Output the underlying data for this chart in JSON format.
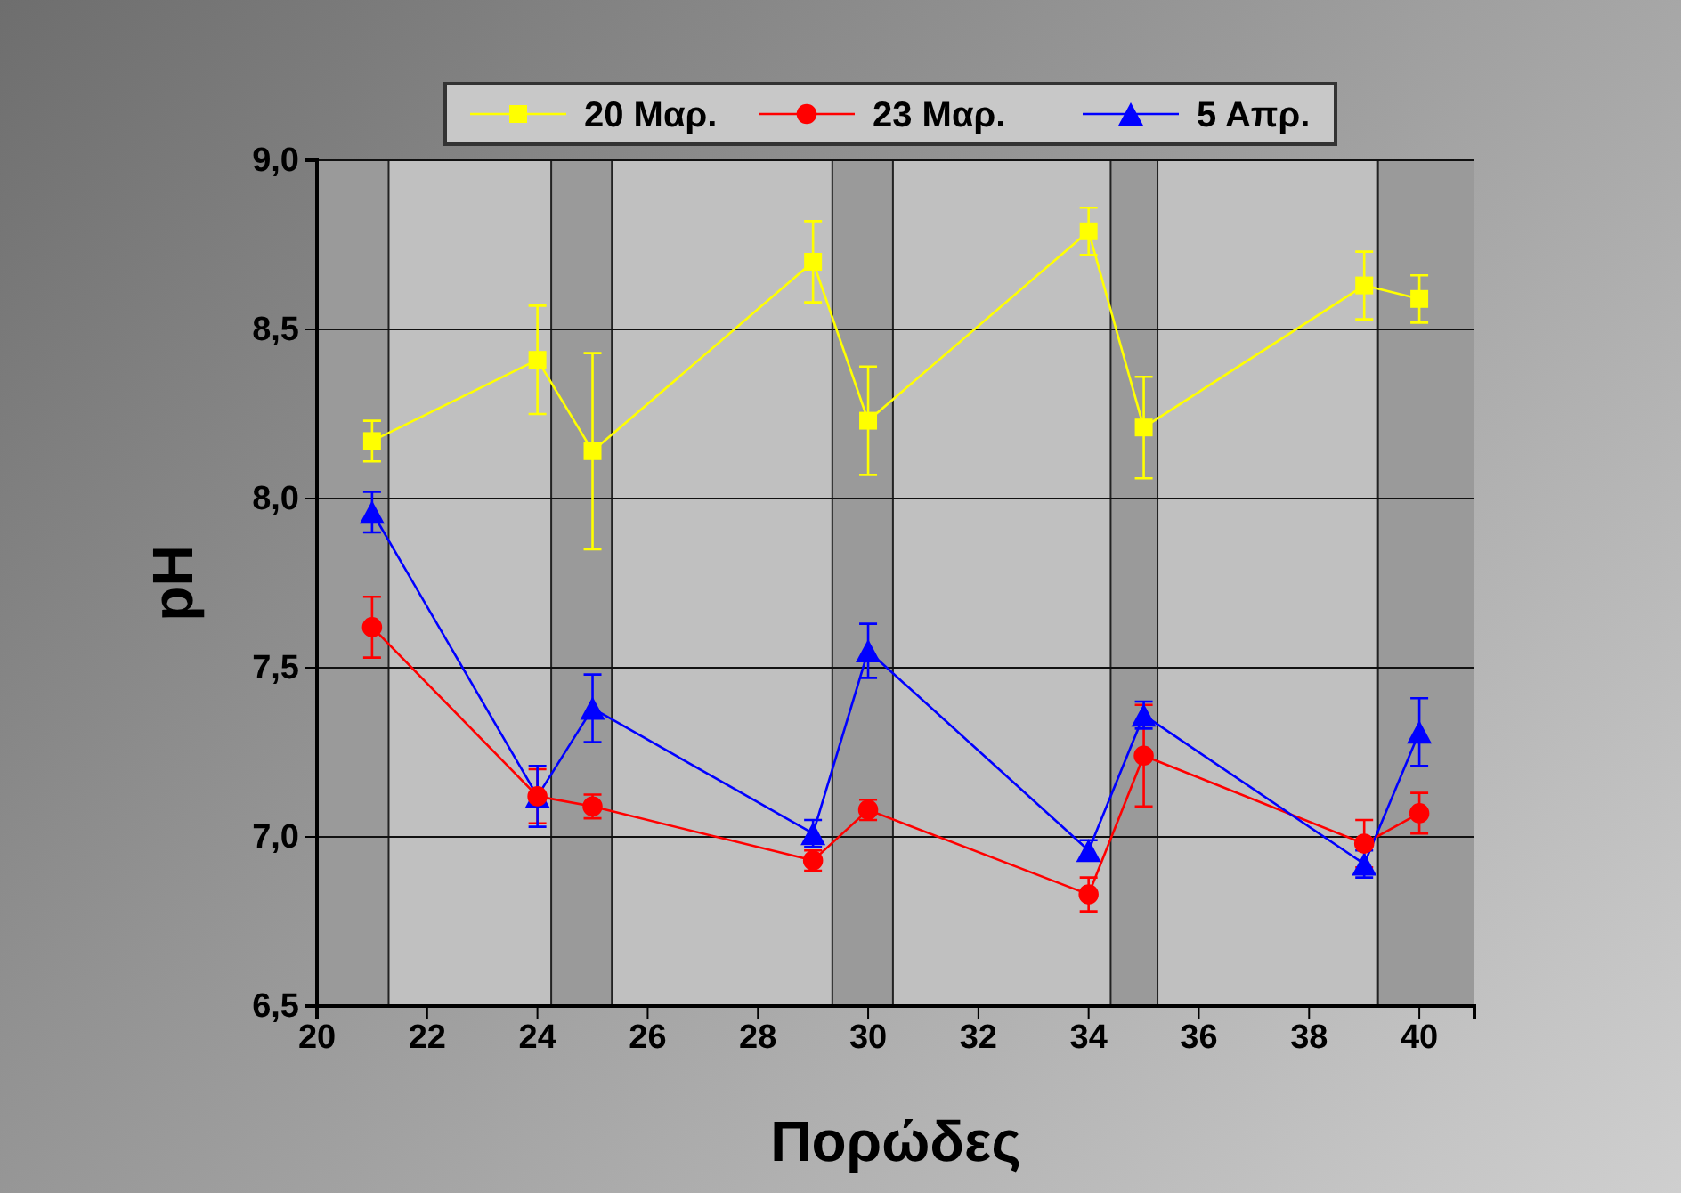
{
  "chart_data": {
    "type": "line",
    "xlabel": "Πορώδες",
    "ylabel": "pH",
    "xlim": [
      20,
      41
    ],
    "xticks": [
      20,
      22,
      24,
      26,
      28,
      30,
      32,
      34,
      36,
      38,
      40
    ],
    "ylim": [
      6.5,
      9.0
    ],
    "yticks": [
      {
        "value": 6.5,
        "label": "6,5"
      },
      {
        "value": 7.0,
        "label": "7,0"
      },
      {
        "value": 7.5,
        "label": "7,5"
      },
      {
        "value": 8.0,
        "label": "8,0"
      },
      {
        "value": 8.5,
        "label": "8,5"
      },
      {
        "value": 9.0,
        "label": "9,0"
      }
    ],
    "grid": "y",
    "legend": "top",
    "x": [
      21,
      24,
      25,
      29,
      30,
      34,
      35,
      39,
      40
    ],
    "bands": [
      {
        "axis": "x",
        "from": 21.3,
        "to": 24.25,
        "color": "#c0c0c0"
      },
      {
        "axis": "x",
        "from": 25.35,
        "to": 29.35,
        "color": "#c0c0c0"
      },
      {
        "axis": "x",
        "from": 30.45,
        "to": 34.4,
        "color": "#c0c0c0"
      },
      {
        "axis": "x",
        "from": 35.25,
        "to": 39.25,
        "color": "#c0c0c0"
      }
    ],
    "series": [
      {
        "name": "20 Μαρ.",
        "color": "#ffff00",
        "marker": "square",
        "values": [
          8.17,
          8.41,
          8.14,
          8.7,
          8.23,
          8.79,
          8.21,
          8.63,
          8.59
        ],
        "errors": [
          0.06,
          0.16,
          0.29,
          0.12,
          0.16,
          0.07,
          0.15,
          0.1,
          0.07
        ]
      },
      {
        "name": "23 Μαρ.",
        "color": "#ff0000",
        "marker": "circle",
        "values": [
          7.62,
          7.12,
          7.09,
          6.93,
          7.08,
          6.83,
          7.24,
          6.98,
          7.07
        ],
        "errors": [
          0.09,
          0.08,
          0.035,
          0.03,
          0.03,
          0.05,
          0.15,
          0.07,
          0.06
        ]
      },
      {
        "name": "5 Απρ.",
        "color": "#0000ff",
        "marker": "triangle",
        "values": [
          7.96,
          7.12,
          7.38,
          7.01,
          7.55,
          6.96,
          7.36,
          6.92,
          7.31
        ],
        "errors": [
          0.06,
          0.09,
          0.1,
          0.04,
          0.08,
          0.03,
          0.04,
          0.04,
          0.1
        ]
      }
    ]
  }
}
